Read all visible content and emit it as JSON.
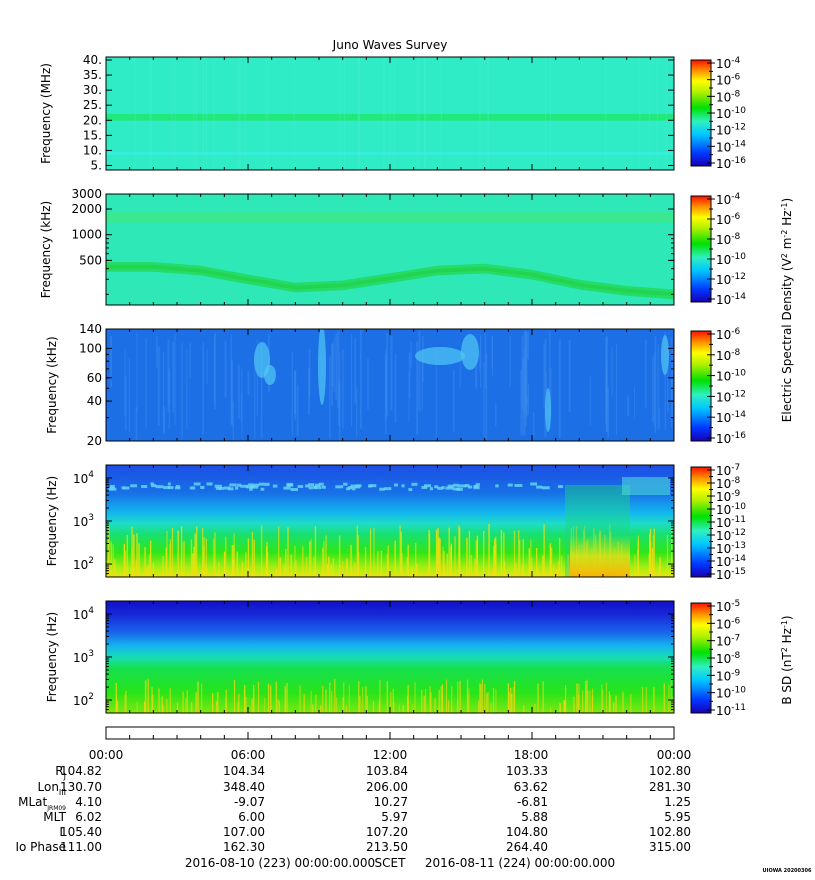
{
  "chart_data": {
    "type": "heatmap",
    "title": "Juno Waves Survey",
    "footer": {
      "start": "2016-08-10 (223) 00:00:00.000",
      "scet": "SCET",
      "end": "2016-08-11 (224) 00:00:00.000",
      "stamp": "UIOWA 20200306"
    },
    "x_ticks": [
      "00:00",
      "06:00",
      "12:00",
      "18:00",
      "00:00"
    ],
    "panels": [
      {
        "id": "p1",
        "ylabel": "Frequency (MHz)",
        "yscale": "linear",
        "ylim": [
          3.5,
          41
        ],
        "yticks": [
          {
            "v": 40,
            "label": "40."
          },
          {
            "v": 35,
            "label": "35."
          },
          {
            "v": 30,
            "label": "30."
          },
          {
            "v": 25,
            "label": "25."
          },
          {
            "v": 20,
            "label": "20."
          },
          {
            "v": 15,
            "label": "15."
          },
          {
            "v": 10,
            "label": "10."
          },
          {
            "v": 5,
            "label": "5."
          }
        ],
        "bg": "#2fecc6",
        "bands": [
          {
            "center": 21,
            "width": 2.2,
            "color": "#22e87a"
          },
          {
            "center": 9,
            "width": 1.0,
            "color": "#36eedd"
          }
        ],
        "colorbar": {
          "ticks": [
            {
              "base": "10",
              "exp": "-4"
            },
            {
              "base": "10",
              "exp": "-6"
            },
            {
              "base": "10",
              "exp": "-8"
            },
            {
              "base": "10",
              "exp": "-10"
            },
            {
              "base": "10",
              "exp": "-12"
            },
            {
              "base": "10",
              "exp": "-14"
            },
            {
              "base": "10",
              "exp": "-16"
            }
          ]
        }
      },
      {
        "id": "p2",
        "ylabel": "Frequency (kHz)",
        "yscale": "log",
        "ylim": [
          150,
          3000
        ],
        "yticks": [
          {
            "v": 3000,
            "label": "3000"
          },
          {
            "v": 2000,
            "label": "2000"
          },
          {
            "v": 1000,
            "label": "1000"
          },
          {
            "v": 500,
            "label": "500"
          }
        ],
        "bg": "#2ee8b8",
        "bands": [
          {
            "center": 1600,
            "width_factor": 1.15,
            "color": "#3ae890"
          }
        ],
        "curve": {
          "x": [
            0,
            2,
            4,
            6,
            8,
            10,
            12,
            14,
            16,
            18,
            20,
            22,
            24
          ],
          "y": [
            420,
            420,
            380,
            300,
            240,
            255,
            310,
            380,
            400,
            340,
            260,
            220,
            200
          ],
          "color": "#25d95a"
        },
        "colorbar": {
          "ticks": [
            {
              "base": "10",
              "exp": "-4"
            },
            {
              "base": "10",
              "exp": "-6"
            },
            {
              "base": "10",
              "exp": "-8"
            },
            {
              "base": "10",
              "exp": "-10"
            },
            {
              "base": "10",
              "exp": "-12"
            },
            {
              "base": "10",
              "exp": "-14"
            }
          ]
        }
      },
      {
        "id": "p3",
        "ylabel": "Frequency (kHz)",
        "yscale": "log",
        "ylim": [
          20,
          140
        ],
        "yticks": [
          {
            "v": 140,
            "label": "140"
          },
          {
            "v": 100,
            "label": "100"
          },
          {
            "v": 60,
            "label": "60"
          },
          {
            "v": 40,
            "label": "40"
          },
          {
            "v": 20,
            "label": "20"
          }
        ],
        "bg": "#1d6fe6",
        "colorbar": {
          "ticks": [
            {
              "base": "10",
              "exp": "-6"
            },
            {
              "base": "10",
              "exp": "-8"
            },
            {
              "base": "10",
              "exp": "-10"
            },
            {
              "base": "10",
              "exp": "-12"
            },
            {
              "base": "10",
              "exp": "-14"
            },
            {
              "base": "10",
              "exp": "-16"
            }
          ]
        }
      },
      {
        "id": "p4",
        "ylabel": "Frequency (Hz)",
        "yscale": "log",
        "ylim": [
          50,
          20000
        ],
        "yticks": [
          {
            "v": 10000,
            "base": "10",
            "exp": "4"
          },
          {
            "v": 1000,
            "base": "10",
            "exp": "3"
          },
          {
            "v": 100,
            "base": "10",
            "exp": "2"
          }
        ],
        "colorbar": {
          "ticks": [
            {
              "base": "10",
              "exp": "-7"
            },
            {
              "base": "10",
              "exp": "-8"
            },
            {
              "base": "10",
              "exp": "-9"
            },
            {
              "base": "10",
              "exp": "-10"
            },
            {
              "base": "10",
              "exp": "-11"
            },
            {
              "base": "10",
              "exp": "-12"
            },
            {
              "base": "10",
              "exp": "-13"
            },
            {
              "base": "10",
              "exp": "-14"
            },
            {
              "base": "10",
              "exp": "-15"
            }
          ]
        }
      },
      {
        "id": "p5",
        "ylabel": "Frequency (Hz)",
        "yscale": "log",
        "ylim": [
          50,
          20000
        ],
        "yticks": [
          {
            "v": 10000,
            "base": "10",
            "exp": "4"
          },
          {
            "v": 1000,
            "base": "10",
            "exp": "3"
          },
          {
            "v": 100,
            "base": "10",
            "exp": "2"
          }
        ],
        "colorbar": {
          "ticks": [
            {
              "base": "10",
              "exp": "-5"
            },
            {
              "base": "10",
              "exp": "-6"
            },
            {
              "base": "10",
              "exp": "-7"
            },
            {
              "base": "10",
              "exp": "-8"
            },
            {
              "base": "10",
              "exp": "-9"
            },
            {
              "base": "10",
              "exp": "-10"
            },
            {
              "base": "10",
              "exp": "-11"
            }
          ]
        }
      }
    ],
    "cb_label_e": {
      "pre": "Electric Spectral Density (V",
      "s1": "2",
      "m1": " m",
      "s2": "-2",
      "m2": " Hz",
      "s3": "-1",
      "post": ")"
    },
    "cb_label_b": {
      "pre": "B SD (nT",
      "s1": "2",
      "m1": " Hz",
      "s2": "-1",
      "post": ")"
    },
    "ephemeris": [
      {
        "label": "R",
        "sub": "J",
        "values": [
          "104.82",
          "104.34",
          "103.84",
          "103.33",
          "102.80"
        ]
      },
      {
        "label": "Lon",
        "sub": "III",
        "values": [
          "130.70",
          "348.40",
          "206.00",
          "63.62",
          "281.30"
        ]
      },
      {
        "label": "MLat",
        "sub": "JRM09",
        "values": [
          "4.10",
          "-9.07",
          "10.27",
          "-6.81",
          "1.25"
        ]
      },
      {
        "label": "MLT",
        "sub": "",
        "values": [
          "6.02",
          "6.00",
          "5.97",
          "5.88",
          "5.95"
        ]
      },
      {
        "label": "L",
        "sub": "",
        "values": [
          "105.40",
          "107.00",
          "107.20",
          "104.80",
          "102.80"
        ]
      },
      {
        "label": "Io Phase",
        "sub": "",
        "values": [
          "111.00",
          "162.30",
          "213.50",
          "264.40",
          "315.00"
        ]
      }
    ]
  }
}
